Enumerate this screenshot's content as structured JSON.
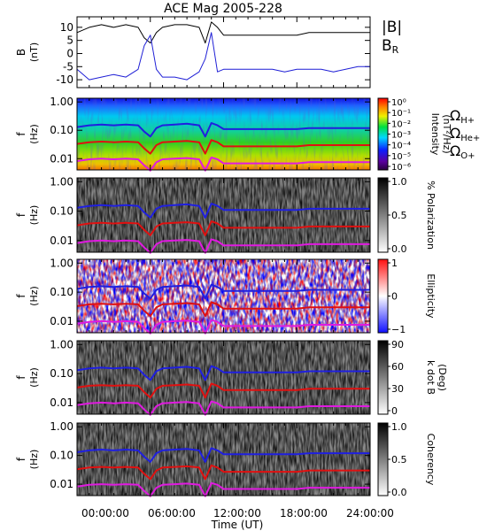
{
  "title": "ACE Mag 2005-228",
  "colors": {
    "b_total": "#000000",
    "b_r": "#1f1fd6",
    "h_plus": "#1f1fe0",
    "he_plus": "#e01010",
    "o_plus": "#e01ae0",
    "polarization_low": "#ffffff",
    "polarization_high": "#000000",
    "ellipticity_neg": "#1f1ff0",
    "ellipticity_pos": "#f01f1f"
  },
  "chart_data": [
    {
      "type": "line",
      "panel": "magnetic-field",
      "ylabel": [
        "B",
        "(nT)"
      ],
      "yticks": [
        "10",
        "5",
        "0",
        "-5",
        "-10"
      ],
      "ylim": [
        -13,
        14
      ],
      "xlim_hours": [
        0,
        24
      ],
      "legend": [
        "|B|",
        "BR"
      ],
      "legend_placement": "right",
      "series": [
        {
          "name": "|B|",
          "x": [
            0,
            1,
            2,
            3,
            4,
            5,
            5.5,
            6,
            6.5,
            7,
            8,
            9,
            10,
            10.5,
            11,
            11.5,
            12,
            13,
            14,
            15,
            16,
            17,
            18,
            19,
            20,
            21,
            22,
            23,
            24
          ],
          "values": [
            8,
            10,
            11,
            10,
            11,
            10,
            6,
            4,
            8,
            10,
            11,
            11,
            10,
            4,
            12,
            10,
            7,
            7,
            7,
            7,
            7,
            7,
            7,
            8,
            8,
            8,
            8,
            8,
            8
          ]
        },
        {
          "name": "BR",
          "x": [
            0,
            1,
            2,
            3,
            4,
            5,
            5.5,
            6,
            6.5,
            7,
            8,
            9,
            10,
            10.5,
            11,
            11.5,
            12,
            13,
            14,
            15,
            16,
            17,
            18,
            19,
            20,
            21,
            22,
            23,
            24
          ],
          "values": [
            -6,
            -10,
            -9,
            -8,
            -9,
            -6,
            3,
            7,
            -6,
            -9,
            -9,
            -10,
            -7,
            -2,
            8,
            -7,
            -6,
            -6,
            -6,
            -6,
            -6,
            -7,
            -6,
            -6,
            -6,
            -7,
            -6,
            -5,
            -5
          ]
        }
      ]
    },
    {
      "type": "heatmap",
      "panel": "intensity",
      "ylabel": [
        "f",
        "(Hz)"
      ],
      "yticks": [
        "1.00",
        "0.10",
        "0.01"
      ],
      "colorbar_label": [
        "Intensity",
        "(nT²/Hz)"
      ],
      "colorbar_ticks": [
        "10⁰",
        "10⁻¹",
        "10⁻²",
        "10⁻³",
        "10⁻⁴",
        "10⁻⁵",
        "10⁻⁶"
      ],
      "legend": [
        "ΩH+",
        "ΩHe+",
        "ΩO+"
      ]
    },
    {
      "type": "heatmap",
      "panel": "polarization",
      "ylabel": [
        "f",
        "(Hz)"
      ],
      "yticks": [
        "1.00",
        "0.10",
        "0.01"
      ],
      "colorbar_label": [
        "% Polarization"
      ],
      "colorbar_ticks": [
        "1.0",
        "0.5",
        "0.0"
      ]
    },
    {
      "type": "heatmap",
      "panel": "ellipticity",
      "ylabel": [
        "f",
        "(Hz)"
      ],
      "yticks": [
        "1.00",
        "0.10",
        "0.01"
      ],
      "colorbar_label": [
        "Ellipticity"
      ],
      "colorbar_ticks": [
        "1",
        "0",
        "−1"
      ]
    },
    {
      "type": "heatmap",
      "panel": "k-dot-b",
      "ylabel": [
        "f",
        "(Hz)"
      ],
      "yticks": [
        "1.00",
        "0.10",
        "0.01"
      ],
      "colorbar_label": [
        "k dot B",
        "(Deg)"
      ],
      "colorbar_ticks": [
        "90",
        "60",
        "30",
        "0"
      ]
    },
    {
      "type": "heatmap",
      "panel": "coherency",
      "ylabel": [
        "f",
        "(Hz)"
      ],
      "yticks": [
        "1.00",
        "0.10",
        "0.01"
      ],
      "colorbar_label": [
        "Coherency"
      ],
      "colorbar_ticks": [
        "1.0",
        "0.5",
        "0.0"
      ]
    }
  ],
  "gyrofrequencies": {
    "x_hours": [
      0,
      1,
      2,
      3,
      4,
      5,
      5.5,
      6,
      6.5,
      7,
      8,
      9,
      10,
      10.5,
      11,
      11.5,
      12,
      13,
      14,
      15,
      16,
      17,
      18,
      19,
      20,
      21,
      22,
      23,
      24
    ],
    "h_plus_hz": [
      0.13,
      0.15,
      0.16,
      0.15,
      0.16,
      0.15,
      0.09,
      0.06,
      0.12,
      0.15,
      0.16,
      0.17,
      0.15,
      0.06,
      0.18,
      0.15,
      0.11,
      0.11,
      0.11,
      0.11,
      0.11,
      0.11,
      0.11,
      0.12,
      0.12,
      0.12,
      0.12,
      0.12,
      0.12
    ],
    "he_plus_hz": [
      0.033,
      0.038,
      0.04,
      0.038,
      0.04,
      0.038,
      0.023,
      0.015,
      0.03,
      0.038,
      0.04,
      0.042,
      0.038,
      0.015,
      0.045,
      0.038,
      0.027,
      0.027,
      0.027,
      0.027,
      0.027,
      0.027,
      0.027,
      0.03,
      0.03,
      0.03,
      0.03,
      0.03,
      0.03
    ],
    "o_plus_hz": [
      0.0082,
      0.0095,
      0.01,
      0.0095,
      0.01,
      0.0095,
      0.0058,
      0.0038,
      0.0075,
      0.0095,
      0.01,
      0.0105,
      0.0095,
      0.0038,
      0.011,
      0.0095,
      0.0068,
      0.0068,
      0.0068,
      0.0068,
      0.0068,
      0.0068,
      0.0068,
      0.0075,
      0.0075,
      0.0075,
      0.0075,
      0.0075,
      0.0075
    ]
  },
  "xaxis": {
    "label": "Time (UT)",
    "ticks": [
      "00:00:00",
      "06:00:00",
      "12:00:00",
      "18:00:00",
      "24:00:00"
    ]
  }
}
